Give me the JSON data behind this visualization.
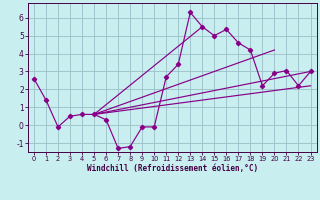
{
  "xlabel": "Windchill (Refroidissement éolien,°C)",
  "bg_color": "#c8eef0",
  "grid_color": "#9bbfc8",
  "line_color": "#880088",
  "ylim": [
    -1.5,
    6.8
  ],
  "xlim": [
    -0.5,
    23.5
  ],
  "yticks": [
    -1,
    0,
    1,
    2,
    3,
    4,
    5,
    6
  ],
  "xticks": [
    0,
    1,
    2,
    3,
    4,
    5,
    6,
    7,
    8,
    9,
    10,
    11,
    12,
    13,
    14,
    15,
    16,
    17,
    18,
    19,
    20,
    21,
    22,
    23
  ],
  "main_x": [
    0,
    1,
    2,
    3,
    4,
    5,
    6,
    7,
    8,
    9,
    10,
    11,
    12,
    13,
    14,
    15,
    16,
    17,
    18,
    19,
    20,
    21,
    22,
    23
  ],
  "main_y": [
    2.6,
    1.4,
    -0.1,
    0.5,
    0.6,
    0.6,
    0.3,
    -1.3,
    -1.2,
    -0.1,
    -0.1,
    2.7,
    3.4,
    6.3,
    5.5,
    5.0,
    5.35,
    4.6,
    4.2,
    2.2,
    2.9,
    3.05,
    2.2,
    3.0
  ],
  "diag_lines": [
    [
      [
        5,
        23
      ],
      [
        0.6,
        3.0
      ]
    ],
    [
      [
        5,
        23
      ],
      [
        0.6,
        2.2
      ]
    ],
    [
      [
        5,
        14
      ],
      [
        0.6,
        5.5
      ]
    ],
    [
      [
        5,
        20
      ],
      [
        0.6,
        4.2
      ]
    ]
  ]
}
